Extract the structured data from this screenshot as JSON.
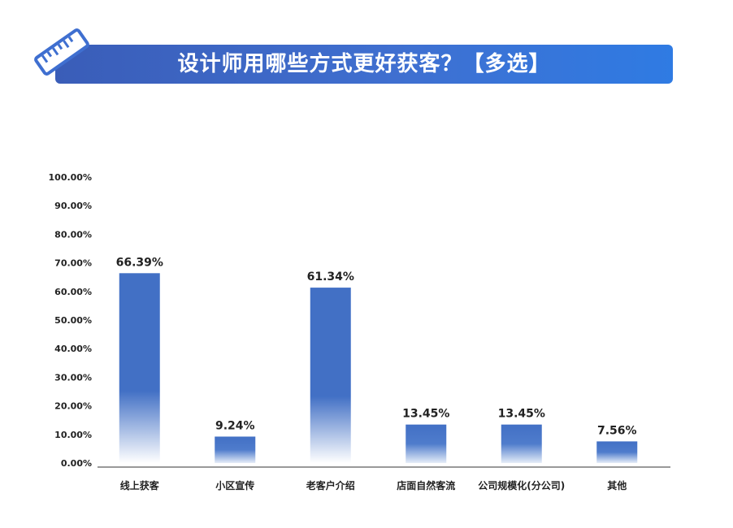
{
  "title": "设计师用哪些方式更好获客？【多选】",
  "icons": {
    "title_icon": "ruler-icon"
  },
  "colors": {
    "bar": "#4270c5",
    "bar_fade": "#ffffff",
    "banner": "#3f6fd0",
    "axis": "#333333"
  },
  "chart_data": {
    "type": "bar",
    "categories": [
      "线上获客",
      "小区宣传",
      "老客户介绍",
      "店面自然客流",
      "公司规模化(分公司)",
      "其他"
    ],
    "values": [
      66.39,
      9.24,
      61.34,
      13.45,
      13.45,
      7.56
    ],
    "value_labels": [
      "66.39%",
      "9.24%",
      "61.34%",
      "13.45%",
      "13.45%",
      "7.56%"
    ],
    "yticks": [
      "0.00%",
      "10.00%",
      "20.00%",
      "30.00%",
      "40.00%",
      "50.00%",
      "60.00%",
      "70.00%",
      "80.00%",
      "90.00%",
      "100.00%"
    ],
    "ylim": [
      0,
      100
    ],
    "xlabel": "",
    "ylabel": "",
    "grid": false,
    "legend": "none"
  }
}
